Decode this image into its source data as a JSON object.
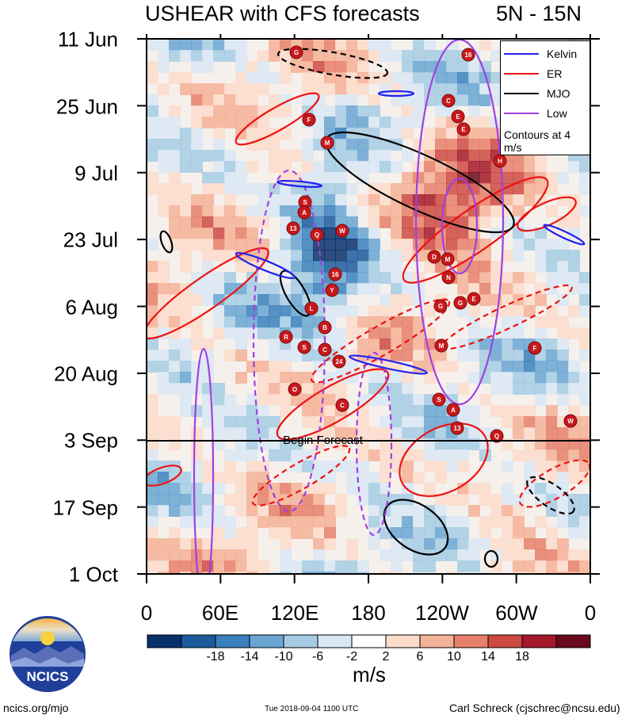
{
  "title": "USHEAR with CFS forecasts",
  "lat_range": "5N - 15N",
  "legend": {
    "items": [
      {
        "label": "Kelvin",
        "color": "#2222ee"
      },
      {
        "label": "ER",
        "color": "#ee1111"
      },
      {
        "label": "MJO",
        "color": "#000000"
      },
      {
        "label": "Low",
        "color": "#a040e0"
      }
    ],
    "note": "Contours at 4 m/s"
  },
  "forecast_label": "Begin Forecast",
  "units": "m/s",
  "footer": {
    "left": "ncics.org/mjo",
    "center": "Tue 2018-09-04 1100 UTC",
    "right": "Carl Schreck (cjschrec@ncsu.edu)"
  },
  "logo": {
    "text": "NCICS"
  },
  "chart_data": {
    "type": "heatmap",
    "title": "USHEAR with CFS forecasts",
    "subtitle": "5N - 15N",
    "x_ticks": [
      "0",
      "60E",
      "120E",
      "180",
      "120W",
      "60W",
      "0"
    ],
    "x_range_deg_east": [
      0,
      360
    ],
    "y_ticks": [
      "11 Jun",
      "25 Jun",
      "9 Jul",
      "23 Jul",
      "6 Aug",
      "20 Aug",
      "3 Sep",
      "17 Sep",
      "1 Oct"
    ],
    "y_range": [
      "2018-06-11",
      "2018-10-01"
    ],
    "forecast_start": "2018-09-03",
    "colorbar": {
      "labels": [
        "-18",
        "-14",
        "-10",
        "-6",
        "-2",
        "2",
        "6",
        "10",
        "14",
        "18"
      ],
      "colors": [
        "#08306b",
        "#1c5a9c",
        "#3a80bd",
        "#6aa6d4",
        "#a6cce4",
        "#d9e8f4",
        "#ffffff",
        "#fbdccb",
        "#f4b298",
        "#e6806b",
        "#cc4a43",
        "#a5192a",
        "#670a1c"
      ]
    },
    "contour_interval_m_s": 4,
    "storm_labels": [
      "G",
      "F",
      "M",
      "S",
      "A",
      "13",
      "Q",
      "W",
      "16",
      "Y",
      "L",
      "B",
      "R",
      "S",
      "C",
      "24",
      "O",
      "C",
      "C",
      "E",
      "E",
      "H",
      "N",
      "M",
      "D",
      "G",
      "E"
    ]
  }
}
